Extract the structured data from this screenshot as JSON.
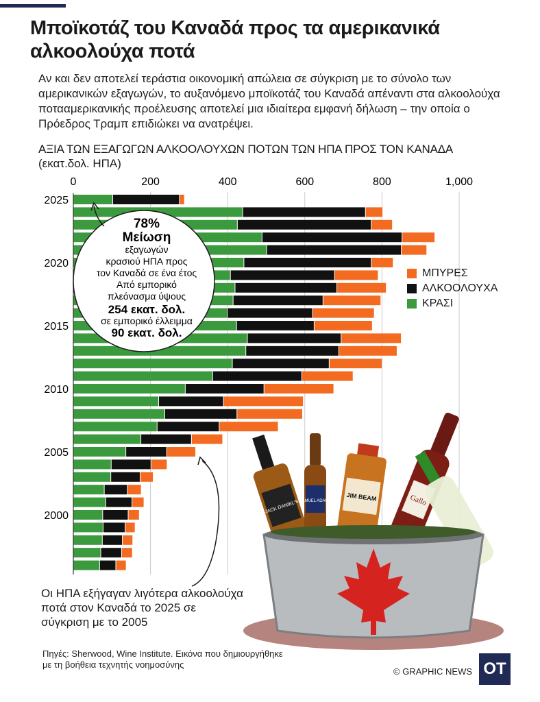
{
  "header": {
    "title": "Μποϊκοτάζ του Καναδά προς τα αμερικανικά αλκοολούχα ποτά",
    "intro": "Αν και δεν αποτελεί τεράστια οικονομική απώλεια σε σύγκριση με το σύνολο των αμερικανικών εξαγωγών, το αυξανόμενο μποϊκοτάζ του Καναδά απέναντι στα αλκοολούχα ποτααμερικανικής προέλευσης αποτελεί μια ιδιαίτερα εμφανή δήλωση – την οποία ο Πρόεδρος Τραμπ επιδιώκει να ανατρέψει."
  },
  "chart_data": {
    "type": "bar",
    "orientation": "horizontal",
    "stacked": true,
    "title": "ΑΞΙΑ ΤΩΝ ΕΞΑΓΩΓΩΝ ΑΛΚΟΟΛΟΥΧΩΝ ΠΟΤΩΝ ΤΩΝ ΗΠΑ ΠΡΟΣ ΤΟΝ ΚΑΝΑΔΑ",
    "unit": "(εκατ.δολ. ΗΠΑ)",
    "xlim": [
      0,
      1000
    ],
    "xticks": [
      0,
      200,
      400,
      600,
      800,
      1000
    ],
    "xtick_labels": [
      "0",
      "200",
      "400",
      "600",
      "800",
      "1,000"
    ],
    "years": [
      2025,
      2024,
      2023,
      2022,
      2021,
      2020,
      2019,
      2018,
      2017,
      2016,
      2015,
      2014,
      2013,
      2012,
      2011,
      2010,
      2009,
      2008,
      2007,
      2006,
      2005,
      2004,
      2003,
      2002,
      2001,
      2000,
      1999,
      1998,
      1997,
      1996
    ],
    "year_labels": [
      "2025",
      "2020",
      "2015",
      "2010",
      "2005",
      "2000"
    ],
    "series": [
      {
        "name": "ΚΡΑΣΙ",
        "color": "#3b9a3d",
        "values": [
          103,
          440,
          426,
          490,
          502,
          443,
          408,
          420,
          415,
          400,
          424,
          452,
          448,
          413,
          362,
          291,
          222,
          238,
          218,
          176,
          137,
          99,
          98,
          81,
          85,
          77,
          78,
          76,
          72,
          69
        ]
      },
      {
        "name": "ΑΛΚΟΟΛΟΥΧΑ",
        "color": "#111111",
        "values": [
          173,
          318,
          347,
          363,
          349,
          330,
          270,
          264,
          233,
          221,
          201,
          243,
          241,
          251,
          231,
          204,
          168,
          187,
          161,
          131,
          106,
          103,
          76,
          60,
          68,
          66,
          57,
          52,
          54,
          42
        ]
      },
      {
        "name": "ΜΠΥΡΕΣ",
        "color": "#f36b21",
        "values": [
          13,
          45,
          55,
          85,
          66,
          57,
          113,
          128,
          150,
          160,
          151,
          156,
          151,
          137,
          133,
          181,
          207,
          170,
          153,
          81,
          75,
          42,
          34,
          36,
          31,
          29,
          26,
          27,
          28,
          27
        ]
      }
    ]
  },
  "legend": [
    {
      "label": "ΜΠΥΡΕΣ",
      "color": "#f36b21"
    },
    {
      "label": "ΑΛΚΟΟΛΟΥΧΑ",
      "color": "#111111"
    },
    {
      "label": "ΚΡΑΣΙ",
      "color": "#3b9a3d"
    }
  ],
  "callout": {
    "pct": "78%",
    "headline": "Μείωση",
    "line1": "εξαγωγών",
    "line2": "κρασιού ΗΠΑ προς",
    "line3": "τον Καναδά σε ένα έτος",
    "line4": "Από εμπορικό",
    "line5": "πλεόνασμα ύψους",
    "surplus": "254 εκατ. δολ.",
    "line6": "σε εμπορικό έλλειμμα",
    "deficit": "90 εκατ. δολ."
  },
  "notes": {
    "bottom": "Οι ΗΠΑ εξήγαγαν λιγότερα αλκοολούχα ποτά στον Καναδά το 2025 σε σύγκριση με το 2005",
    "source": "Πηγές: Sherwood, Wine Institute. Εικόνα που δημιουργήθηκε με τη βοήθεια τεχνητής νοημοσύνης",
    "credit": "© GRAPHIC NEWS",
    "logo": "OT"
  },
  "art_labels": {
    "jack": "JACK DANIEL'S",
    "sam": "SAMUEL ADAMS",
    "jim": "JIM BEAM",
    "gallo": "Gallo"
  }
}
